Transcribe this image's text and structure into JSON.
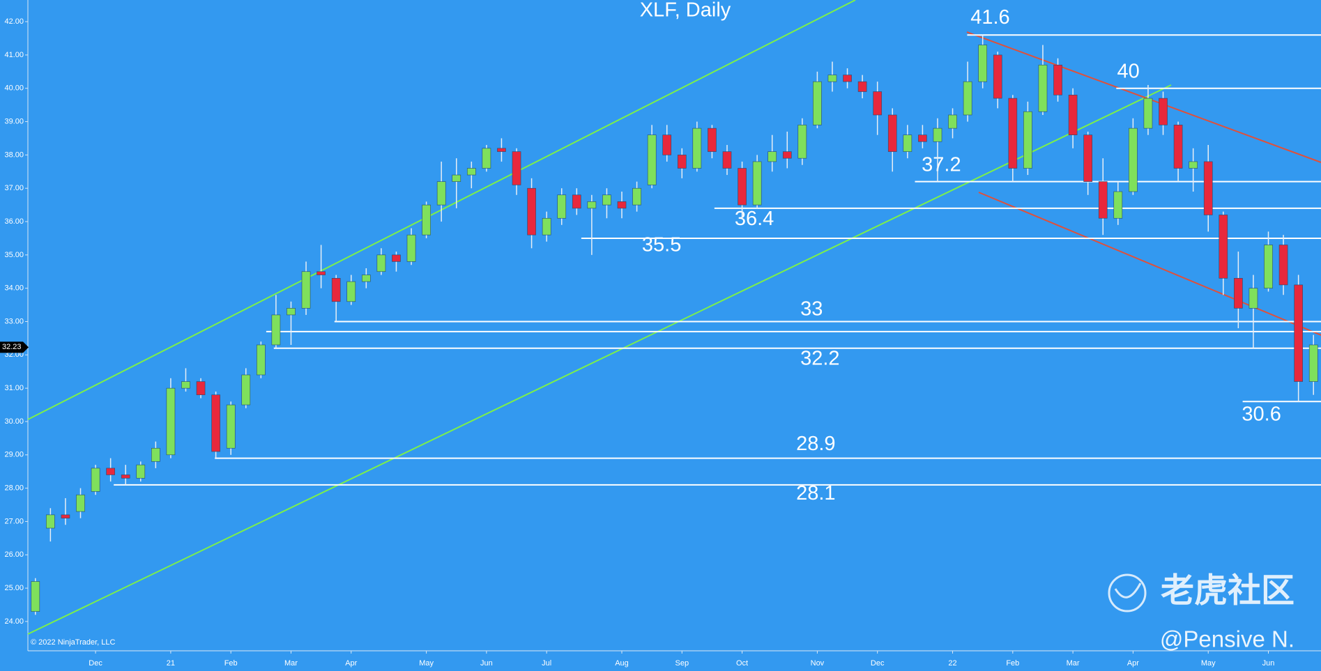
{
  "chart_data": {
    "type": "candlestick",
    "title": "XLF, Daily",
    "categories": [
      null,
      null,
      null,
      null,
      "Dec",
      null,
      null,
      null,
      null,
      "21",
      null,
      null,
      null,
      "Feb",
      null,
      null,
      null,
      "Mar",
      null,
      null,
      null,
      "Apr",
      null,
      null,
      null,
      null,
      "May",
      null,
      null,
      null,
      "Jun",
      null,
      null,
      null,
      "Jul",
      null,
      null,
      null,
      null,
      "Aug",
      null,
      null,
      null,
      "Sep",
      null,
      null,
      null,
      "Oct",
      null,
      null,
      null,
      null,
      "Nov",
      null,
      null,
      null,
      "Dec",
      null,
      null,
      null,
      null,
      "22",
      null,
      null,
      null,
      "Feb",
      null,
      null,
      null,
      "Mar",
      null,
      null,
      null,
      "Apr",
      null,
      null,
      null,
      null,
      "May",
      null,
      null,
      null,
      "Jun",
      null,
      null,
      null
    ],
    "open": [
      24.3,
      26.8,
      27.2,
      27.3,
      27.9,
      28.6,
      28.4,
      28.3,
      28.8,
      29.0,
      31.0,
      31.2,
      30.8,
      29.2,
      30.5,
      31.4,
      32.3,
      33.2,
      33.4,
      34.5,
      34.3,
      33.6,
      34.2,
      34.5,
      35.0,
      34.8,
      35.6,
      36.5,
      37.2,
      37.4,
      37.6,
      38.2,
      38.1,
      37.0,
      35.6,
      36.1,
      36.8,
      36.4,
      36.5,
      36.6,
      36.5,
      37.1,
      38.6,
      38.0,
      37.6,
      38.8,
      38.1,
      37.6,
      36.5,
      37.8,
      38.1,
      37.9,
      38.9,
      40.2,
      40.4,
      40.2,
      39.9,
      39.2,
      38.1,
      38.6,
      38.4,
      38.8,
      39.2,
      40.2,
      41.0,
      39.7,
      37.6,
      39.3,
      40.7,
      39.8,
      38.6,
      37.2,
      36.1,
      36.9,
      38.8,
      39.7,
      38.9,
      37.6,
      37.8,
      36.2,
      34.3,
      33.4,
      34.0,
      35.3,
      34.1,
      31.2
    ],
    "high": [
      25.3,
      27.4,
      27.7,
      28.0,
      28.7,
      28.9,
      28.7,
      28.8,
      29.4,
      31.3,
      31.6,
      31.3,
      30.9,
      30.6,
      31.6,
      32.4,
      33.8,
      33.6,
      34.8,
      35.3,
      34.4,
      34.4,
      34.6,
      35.2,
      35.1,
      35.8,
      36.6,
      37.8,
      37.9,
      37.8,
      38.3,
      38.5,
      38.2,
      37.3,
      36.3,
      37.0,
      37.0,
      36.8,
      37.0,
      36.9,
      37.2,
      38.9,
      38.9,
      38.2,
      39.0,
      38.9,
      38.3,
      37.8,
      38.0,
      38.6,
      38.7,
      39.1,
      40.5,
      40.8,
      40.6,
      40.4,
      40.2,
      39.4,
      38.9,
      38.9,
      39.1,
      39.4,
      40.8,
      41.6,
      41.1,
      39.8,
      39.6,
      41.3,
      40.9,
      40.0,
      38.7,
      37.9,
      37.2,
      39.1,
      40.1,
      39.9,
      39.0,
      38.2,
      38.3,
      36.3,
      35.1,
      34.4,
      35.7,
      35.6,
      34.4,
      32.6
    ],
    "low": [
      24.2,
      26.4,
      26.9,
      27.1,
      27.8,
      28.2,
      28.1,
      28.2,
      28.6,
      28.9,
      30.9,
      30.7,
      28.9,
      29.0,
      30.4,
      31.3,
      32.2,
      32.3,
      33.2,
      34.0,
      33.0,
      33.5,
      34.0,
      34.4,
      34.5,
      34.7,
      35.5,
      36.0,
      36.4,
      37.0,
      37.5,
      37.8,
      36.8,
      35.2,
      35.4,
      35.9,
      36.2,
      35.0,
      36.1,
      36.1,
      36.3,
      37.0,
      37.8,
      37.3,
      37.5,
      37.9,
      37.4,
      36.1,
      36.4,
      37.5,
      37.6,
      37.7,
      38.8,
      39.9,
      40.0,
      39.7,
      38.6,
      37.5,
      37.9,
      38.2,
      37.2,
      38.5,
      39.0,
      40.0,
      39.4,
      37.2,
      37.4,
      39.2,
      39.6,
      38.2,
      36.8,
      35.6,
      35.9,
      36.8,
      38.6,
      38.6,
      37.2,
      36.9,
      35.7,
      33.8,
      32.8,
      32.2,
      33.9,
      33.8,
      30.6,
      30.8
    ],
    "close": [
      25.2,
      27.2,
      27.1,
      27.8,
      28.6,
      28.4,
      28.3,
      28.7,
      29.2,
      31.0,
      31.2,
      30.8,
      29.1,
      30.5,
      31.4,
      32.3,
      33.2,
      33.4,
      34.5,
      34.4,
      33.6,
      34.2,
      34.4,
      35.0,
      34.8,
      35.6,
      36.5,
      37.2,
      37.4,
      37.6,
      38.2,
      38.1,
      37.1,
      35.6,
      36.1,
      36.8,
      36.4,
      36.6,
      36.8,
      36.4,
      37.0,
      38.6,
      38.0,
      37.6,
      38.8,
      38.1,
      37.6,
      36.5,
      37.8,
      38.1,
      37.9,
      38.9,
      40.2,
      40.4,
      40.2,
      39.9,
      39.2,
      38.1,
      38.6,
      38.4,
      38.8,
      39.2,
      40.2,
      41.3,
      39.7,
      37.6,
      39.3,
      40.7,
      39.8,
      38.6,
      37.2,
      36.1,
      36.9,
      38.8,
      39.7,
      38.9,
      37.6,
      37.8,
      36.2,
      34.3,
      33.4,
      34.0,
      35.3,
      34.1,
      31.2,
      32.3
    ],
    "up_color": "#7fe05c",
    "down_color": "#e8283c",
    "ylim": [
      23.12,
      42.65
    ],
    "yticks": [
      {
        "value": 24,
        "label": "24.00"
      },
      {
        "value": 25,
        "label": "25.00"
      },
      {
        "value": 26,
        "label": "26.00"
      },
      {
        "value": 27,
        "label": "27.00"
      },
      {
        "value": 28,
        "label": "28.00"
      },
      {
        "value": 29,
        "label": "29.00"
      },
      {
        "value": 30,
        "label": "30.00"
      },
      {
        "value": 31,
        "label": "31.00"
      },
      {
        "value": 32,
        "label": "32.00"
      },
      {
        "value": 33,
        "label": "33.00"
      },
      {
        "value": 34,
        "label": "34.00"
      },
      {
        "value": 35,
        "label": "35.00"
      },
      {
        "value": 36,
        "label": "36.00"
      },
      {
        "value": 37,
        "label": "37.00"
      },
      {
        "value": 38,
        "label": "38.00"
      },
      {
        "value": 39,
        "label": "39.00"
      },
      {
        "value": 40,
        "label": "40.00"
      },
      {
        "value": 41,
        "label": "41.00"
      },
      {
        "value": 42,
        "label": "42.00"
      }
    ],
    "levels": [
      {
        "value": 41.6,
        "label": "41.6"
      },
      {
        "value": 40,
        "label": "40"
      },
      {
        "value": 37.2,
        "label": "37.2"
      },
      {
        "value": 36.4,
        "label": "36.4"
      },
      {
        "value": 35.5,
        "label": "35.5"
      },
      {
        "value": 33,
        "label": "33"
      },
      {
        "value": 32.7
      },
      {
        "value": 32.2,
        "label": "32.2"
      },
      {
        "value": 28.9,
        "label": "28.9"
      },
      {
        "value": 28.1,
        "label": "28.1"
      },
      {
        "value": 30.6,
        "label": "30.6"
      }
    ],
    "last_price": 32.23,
    "copyright": "© 2022 NinjaTrader, LLC"
  },
  "watermark": {
    "brand": "老虎社区",
    "author": "@Pensive N."
  }
}
